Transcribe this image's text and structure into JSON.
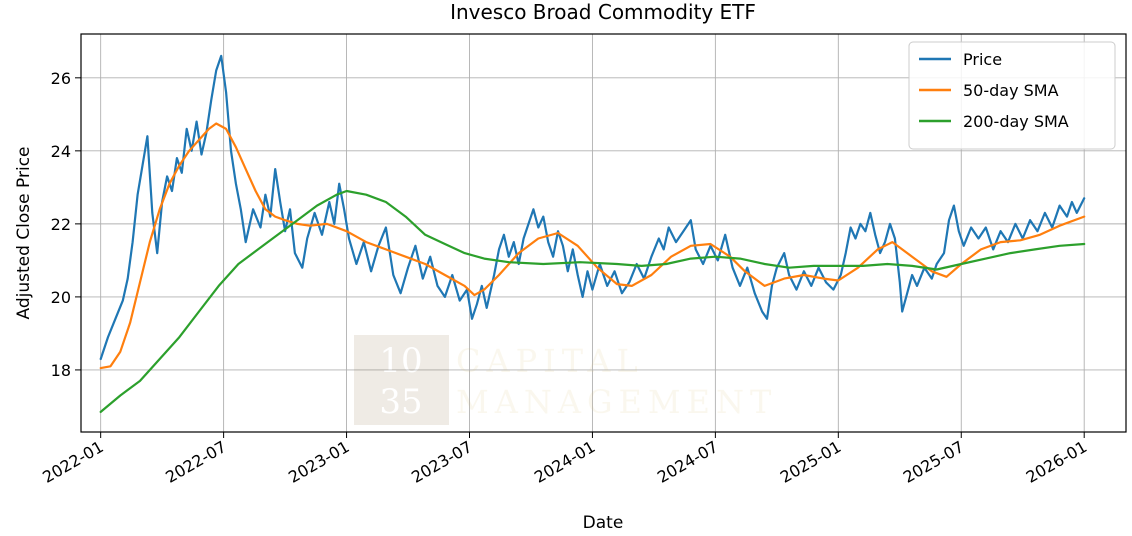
{
  "chart_data": {
    "type": "line",
    "title": "Invesco Broad Commodity ETF",
    "xlabel": "Date",
    "ylabel": "Adjusted Close Price",
    "x_ticks": [
      "2022-01",
      "2022-07",
      "2023-01",
      "2023-07",
      "2024-01",
      "2024-07",
      "2025-01",
      "2025-07",
      "2026-01"
    ],
    "y_ticks": [
      18,
      20,
      22,
      24,
      26
    ],
    "xlim": [
      2021.92,
      2026.17
    ],
    "ylim": [
      16.3,
      27.2
    ],
    "grid": true,
    "legend_position": "top-right",
    "watermark": {
      "line1": "10",
      "line2": "35",
      "word1": "CAPITAL",
      "word2": "MANAGEMENT"
    },
    "series": [
      {
        "name": "Price",
        "color": "#1f77b4",
        "points": [
          [
            2022.0,
            18.3
          ],
          [
            2022.03,
            18.9
          ],
          [
            2022.06,
            19.4
          ],
          [
            2022.09,
            19.9
          ],
          [
            2022.11,
            20.5
          ],
          [
            2022.13,
            21.5
          ],
          [
            2022.15,
            22.8
          ],
          [
            2022.17,
            23.6
          ],
          [
            2022.19,
            24.4
          ],
          [
            2022.21,
            22.3
          ],
          [
            2022.23,
            21.2
          ],
          [
            2022.25,
            22.6
          ],
          [
            2022.27,
            23.3
          ],
          [
            2022.29,
            22.9
          ],
          [
            2022.31,
            23.8
          ],
          [
            2022.33,
            23.4
          ],
          [
            2022.35,
            24.6
          ],
          [
            2022.37,
            24.0
          ],
          [
            2022.39,
            24.8
          ],
          [
            2022.41,
            23.9
          ],
          [
            2022.43,
            24.5
          ],
          [
            2022.45,
            25.4
          ],
          [
            2022.47,
            26.2
          ],
          [
            2022.49,
            26.6
          ],
          [
            2022.51,
            25.6
          ],
          [
            2022.53,
            24.0
          ],
          [
            2022.55,
            23.1
          ],
          [
            2022.57,
            22.4
          ],
          [
            2022.59,
            21.5
          ],
          [
            2022.62,
            22.4
          ],
          [
            2022.65,
            21.9
          ],
          [
            2022.67,
            22.8
          ],
          [
            2022.69,
            22.2
          ],
          [
            2022.71,
            23.5
          ],
          [
            2022.73,
            22.6
          ],
          [
            2022.75,
            21.8
          ],
          [
            2022.77,
            22.4
          ],
          [
            2022.79,
            21.2
          ],
          [
            2022.82,
            20.8
          ],
          [
            2022.84,
            21.6
          ],
          [
            2022.87,
            22.3
          ],
          [
            2022.9,
            21.7
          ],
          [
            2022.93,
            22.6
          ],
          [
            2022.95,
            22.0
          ],
          [
            2022.97,
            23.1
          ],
          [
            2022.99,
            22.4
          ],
          [
            2023.01,
            21.6
          ],
          [
            2023.04,
            20.9
          ],
          [
            2023.07,
            21.5
          ],
          [
            2023.1,
            20.7
          ],
          [
            2023.13,
            21.4
          ],
          [
            2023.16,
            21.9
          ],
          [
            2023.19,
            20.6
          ],
          [
            2023.22,
            20.1
          ],
          [
            2023.25,
            20.8
          ],
          [
            2023.28,
            21.4
          ],
          [
            2023.31,
            20.5
          ],
          [
            2023.34,
            21.1
          ],
          [
            2023.37,
            20.3
          ],
          [
            2023.4,
            20.0
          ],
          [
            2023.43,
            20.6
          ],
          [
            2023.46,
            19.9
          ],
          [
            2023.49,
            20.2
          ],
          [
            2023.51,
            19.4
          ],
          [
            2023.53,
            19.8
          ],
          [
            2023.55,
            20.3
          ],
          [
            2023.57,
            19.7
          ],
          [
            2023.6,
            20.6
          ],
          [
            2023.62,
            21.3
          ],
          [
            2023.64,
            21.7
          ],
          [
            2023.66,
            21.1
          ],
          [
            2023.68,
            21.5
          ],
          [
            2023.7,
            20.9
          ],
          [
            2023.72,
            21.6
          ],
          [
            2023.74,
            22.0
          ],
          [
            2023.76,
            22.4
          ],
          [
            2023.78,
            21.9
          ],
          [
            2023.8,
            22.2
          ],
          [
            2023.82,
            21.5
          ],
          [
            2023.84,
            21.1
          ],
          [
            2023.86,
            21.8
          ],
          [
            2023.88,
            21.4
          ],
          [
            2023.9,
            20.7
          ],
          [
            2023.92,
            21.3
          ],
          [
            2023.94,
            20.6
          ],
          [
            2023.96,
            20.0
          ],
          [
            2023.98,
            20.7
          ],
          [
            2024.0,
            20.2
          ],
          [
            2024.03,
            20.9
          ],
          [
            2024.06,
            20.3
          ],
          [
            2024.09,
            20.7
          ],
          [
            2024.12,
            20.1
          ],
          [
            2024.15,
            20.4
          ],
          [
            2024.18,
            20.9
          ],
          [
            2024.21,
            20.5
          ],
          [
            2024.24,
            21.1
          ],
          [
            2024.27,
            21.6
          ],
          [
            2024.29,
            21.3
          ],
          [
            2024.31,
            21.9
          ],
          [
            2024.34,
            21.5
          ],
          [
            2024.37,
            21.8
          ],
          [
            2024.4,
            22.1
          ],
          [
            2024.42,
            21.3
          ],
          [
            2024.45,
            20.9
          ],
          [
            2024.48,
            21.4
          ],
          [
            2024.51,
            21.0
          ],
          [
            2024.54,
            21.7
          ],
          [
            2024.57,
            20.8
          ],
          [
            2024.6,
            20.3
          ],
          [
            2024.63,
            20.8
          ],
          [
            2024.66,
            20.1
          ],
          [
            2024.69,
            19.6
          ],
          [
            2024.71,
            19.4
          ],
          [
            2024.73,
            20.3
          ],
          [
            2024.75,
            20.8
          ],
          [
            2024.78,
            21.2
          ],
          [
            2024.8,
            20.6
          ],
          [
            2024.83,
            20.2
          ],
          [
            2024.86,
            20.7
          ],
          [
            2024.89,
            20.3
          ],
          [
            2024.92,
            20.8
          ],
          [
            2024.95,
            20.4
          ],
          [
            2024.98,
            20.2
          ],
          [
            2025.01,
            20.6
          ],
          [
            2025.03,
            21.2
          ],
          [
            2025.05,
            21.9
          ],
          [
            2025.07,
            21.6
          ],
          [
            2025.09,
            22.0
          ],
          [
            2025.11,
            21.8
          ],
          [
            2025.13,
            22.3
          ],
          [
            2025.15,
            21.7
          ],
          [
            2025.17,
            21.2
          ],
          [
            2025.19,
            21.5
          ],
          [
            2025.21,
            22.0
          ],
          [
            2025.23,
            21.6
          ],
          [
            2025.25,
            20.4
          ],
          [
            2025.26,
            19.6
          ],
          [
            2025.28,
            20.1
          ],
          [
            2025.3,
            20.6
          ],
          [
            2025.32,
            20.3
          ],
          [
            2025.35,
            20.8
          ],
          [
            2025.38,
            20.5
          ],
          [
            2025.4,
            20.9
          ],
          [
            2025.43,
            21.2
          ],
          [
            2025.45,
            22.1
          ],
          [
            2025.47,
            22.5
          ],
          [
            2025.49,
            21.8
          ],
          [
            2025.51,
            21.4
          ],
          [
            2025.54,
            21.9
          ],
          [
            2025.57,
            21.6
          ],
          [
            2025.6,
            21.9
          ],
          [
            2025.63,
            21.3
          ],
          [
            2025.66,
            21.8
          ],
          [
            2025.69,
            21.5
          ],
          [
            2025.72,
            22.0
          ],
          [
            2025.75,
            21.6
          ],
          [
            2025.78,
            22.1
          ],
          [
            2025.81,
            21.8
          ],
          [
            2025.84,
            22.3
          ],
          [
            2025.87,
            21.9
          ],
          [
            2025.9,
            22.5
          ],
          [
            2025.93,
            22.2
          ],
          [
            2025.95,
            22.6
          ],
          [
            2025.97,
            22.3
          ],
          [
            2026.0,
            22.7
          ]
        ]
      },
      {
        "name": "50-day SMA",
        "color": "#ff7f0e",
        "points": [
          [
            2022.0,
            18.05
          ],
          [
            2022.04,
            18.1
          ],
          [
            2022.08,
            18.5
          ],
          [
            2022.12,
            19.3
          ],
          [
            2022.16,
            20.4
          ],
          [
            2022.2,
            21.5
          ],
          [
            2022.24,
            22.4
          ],
          [
            2022.28,
            23.1
          ],
          [
            2022.32,
            23.6
          ],
          [
            2022.36,
            24.0
          ],
          [
            2022.4,
            24.3
          ],
          [
            2022.44,
            24.6
          ],
          [
            2022.47,
            24.75
          ],
          [
            2022.51,
            24.6
          ],
          [
            2022.55,
            24.1
          ],
          [
            2022.59,
            23.5
          ],
          [
            2022.63,
            22.9
          ],
          [
            2022.67,
            22.4
          ],
          [
            2022.71,
            22.2
          ],
          [
            2022.75,
            22.1
          ],
          [
            2022.8,
            22.0
          ],
          [
            2022.85,
            21.95
          ],
          [
            2022.92,
            22.0
          ],
          [
            2023.0,
            21.8
          ],
          [
            2023.08,
            21.5
          ],
          [
            2023.16,
            21.3
          ],
          [
            2023.24,
            21.1
          ],
          [
            2023.32,
            20.9
          ],
          [
            2023.4,
            20.6
          ],
          [
            2023.48,
            20.3
          ],
          [
            2023.52,
            20.05
          ],
          [
            2023.56,
            20.2
          ],
          [
            2023.62,
            20.6
          ],
          [
            2023.7,
            21.2
          ],
          [
            2023.78,
            21.6
          ],
          [
            2023.86,
            21.75
          ],
          [
            2023.94,
            21.4
          ],
          [
            2024.02,
            20.8
          ],
          [
            2024.1,
            20.35
          ],
          [
            2024.16,
            20.3
          ],
          [
            2024.24,
            20.6
          ],
          [
            2024.32,
            21.1
          ],
          [
            2024.4,
            21.4
          ],
          [
            2024.48,
            21.45
          ],
          [
            2024.56,
            21.1
          ],
          [
            2024.62,
            20.7
          ],
          [
            2024.7,
            20.3
          ],
          [
            2024.78,
            20.5
          ],
          [
            2024.86,
            20.6
          ],
          [
            2024.94,
            20.5
          ],
          [
            2025.0,
            20.45
          ],
          [
            2025.08,
            20.8
          ],
          [
            2025.16,
            21.3
          ],
          [
            2025.22,
            21.5
          ],
          [
            2025.3,
            21.1
          ],
          [
            2025.38,
            20.7
          ],
          [
            2025.44,
            20.55
          ],
          [
            2025.5,
            20.9
          ],
          [
            2025.58,
            21.3
          ],
          [
            2025.66,
            21.5
          ],
          [
            2025.74,
            21.55
          ],
          [
            2025.82,
            21.7
          ],
          [
            2025.9,
            21.95
          ],
          [
            2026.0,
            22.2
          ]
        ]
      },
      {
        "name": "200-day SMA",
        "color": "#2ca02c",
        "points": [
          [
            2022.0,
            16.85
          ],
          [
            2022.08,
            17.3
          ],
          [
            2022.16,
            17.7
          ],
          [
            2022.24,
            18.3
          ],
          [
            2022.32,
            18.9
          ],
          [
            2022.4,
            19.6
          ],
          [
            2022.48,
            20.3
          ],
          [
            2022.56,
            20.9
          ],
          [
            2022.64,
            21.3
          ],
          [
            2022.72,
            21.7
          ],
          [
            2022.8,
            22.1
          ],
          [
            2022.88,
            22.5
          ],
          [
            2022.96,
            22.8
          ],
          [
            2023.0,
            22.9
          ],
          [
            2023.08,
            22.8
          ],
          [
            2023.16,
            22.6
          ],
          [
            2023.24,
            22.2
          ],
          [
            2023.32,
            21.7
          ],
          [
            2023.4,
            21.45
          ],
          [
            2023.48,
            21.2
          ],
          [
            2023.56,
            21.05
          ],
          [
            2023.66,
            20.95
          ],
          [
            2023.8,
            20.9
          ],
          [
            2023.95,
            20.95
          ],
          [
            2024.1,
            20.9
          ],
          [
            2024.2,
            20.85
          ],
          [
            2024.3,
            20.9
          ],
          [
            2024.4,
            21.05
          ],
          [
            2024.5,
            21.1
          ],
          [
            2024.6,
            21.05
          ],
          [
            2024.7,
            20.9
          ],
          [
            2024.8,
            20.8
          ],
          [
            2024.9,
            20.85
          ],
          [
            2025.0,
            20.85
          ],
          [
            2025.1,
            20.85
          ],
          [
            2025.2,
            20.9
          ],
          [
            2025.3,
            20.85
          ],
          [
            2025.4,
            20.75
          ],
          [
            2025.5,
            20.9
          ],
          [
            2025.6,
            21.05
          ],
          [
            2025.7,
            21.2
          ],
          [
            2025.8,
            21.3
          ],
          [
            2025.9,
            21.4
          ],
          [
            2026.0,
            21.45
          ]
        ]
      }
    ]
  }
}
